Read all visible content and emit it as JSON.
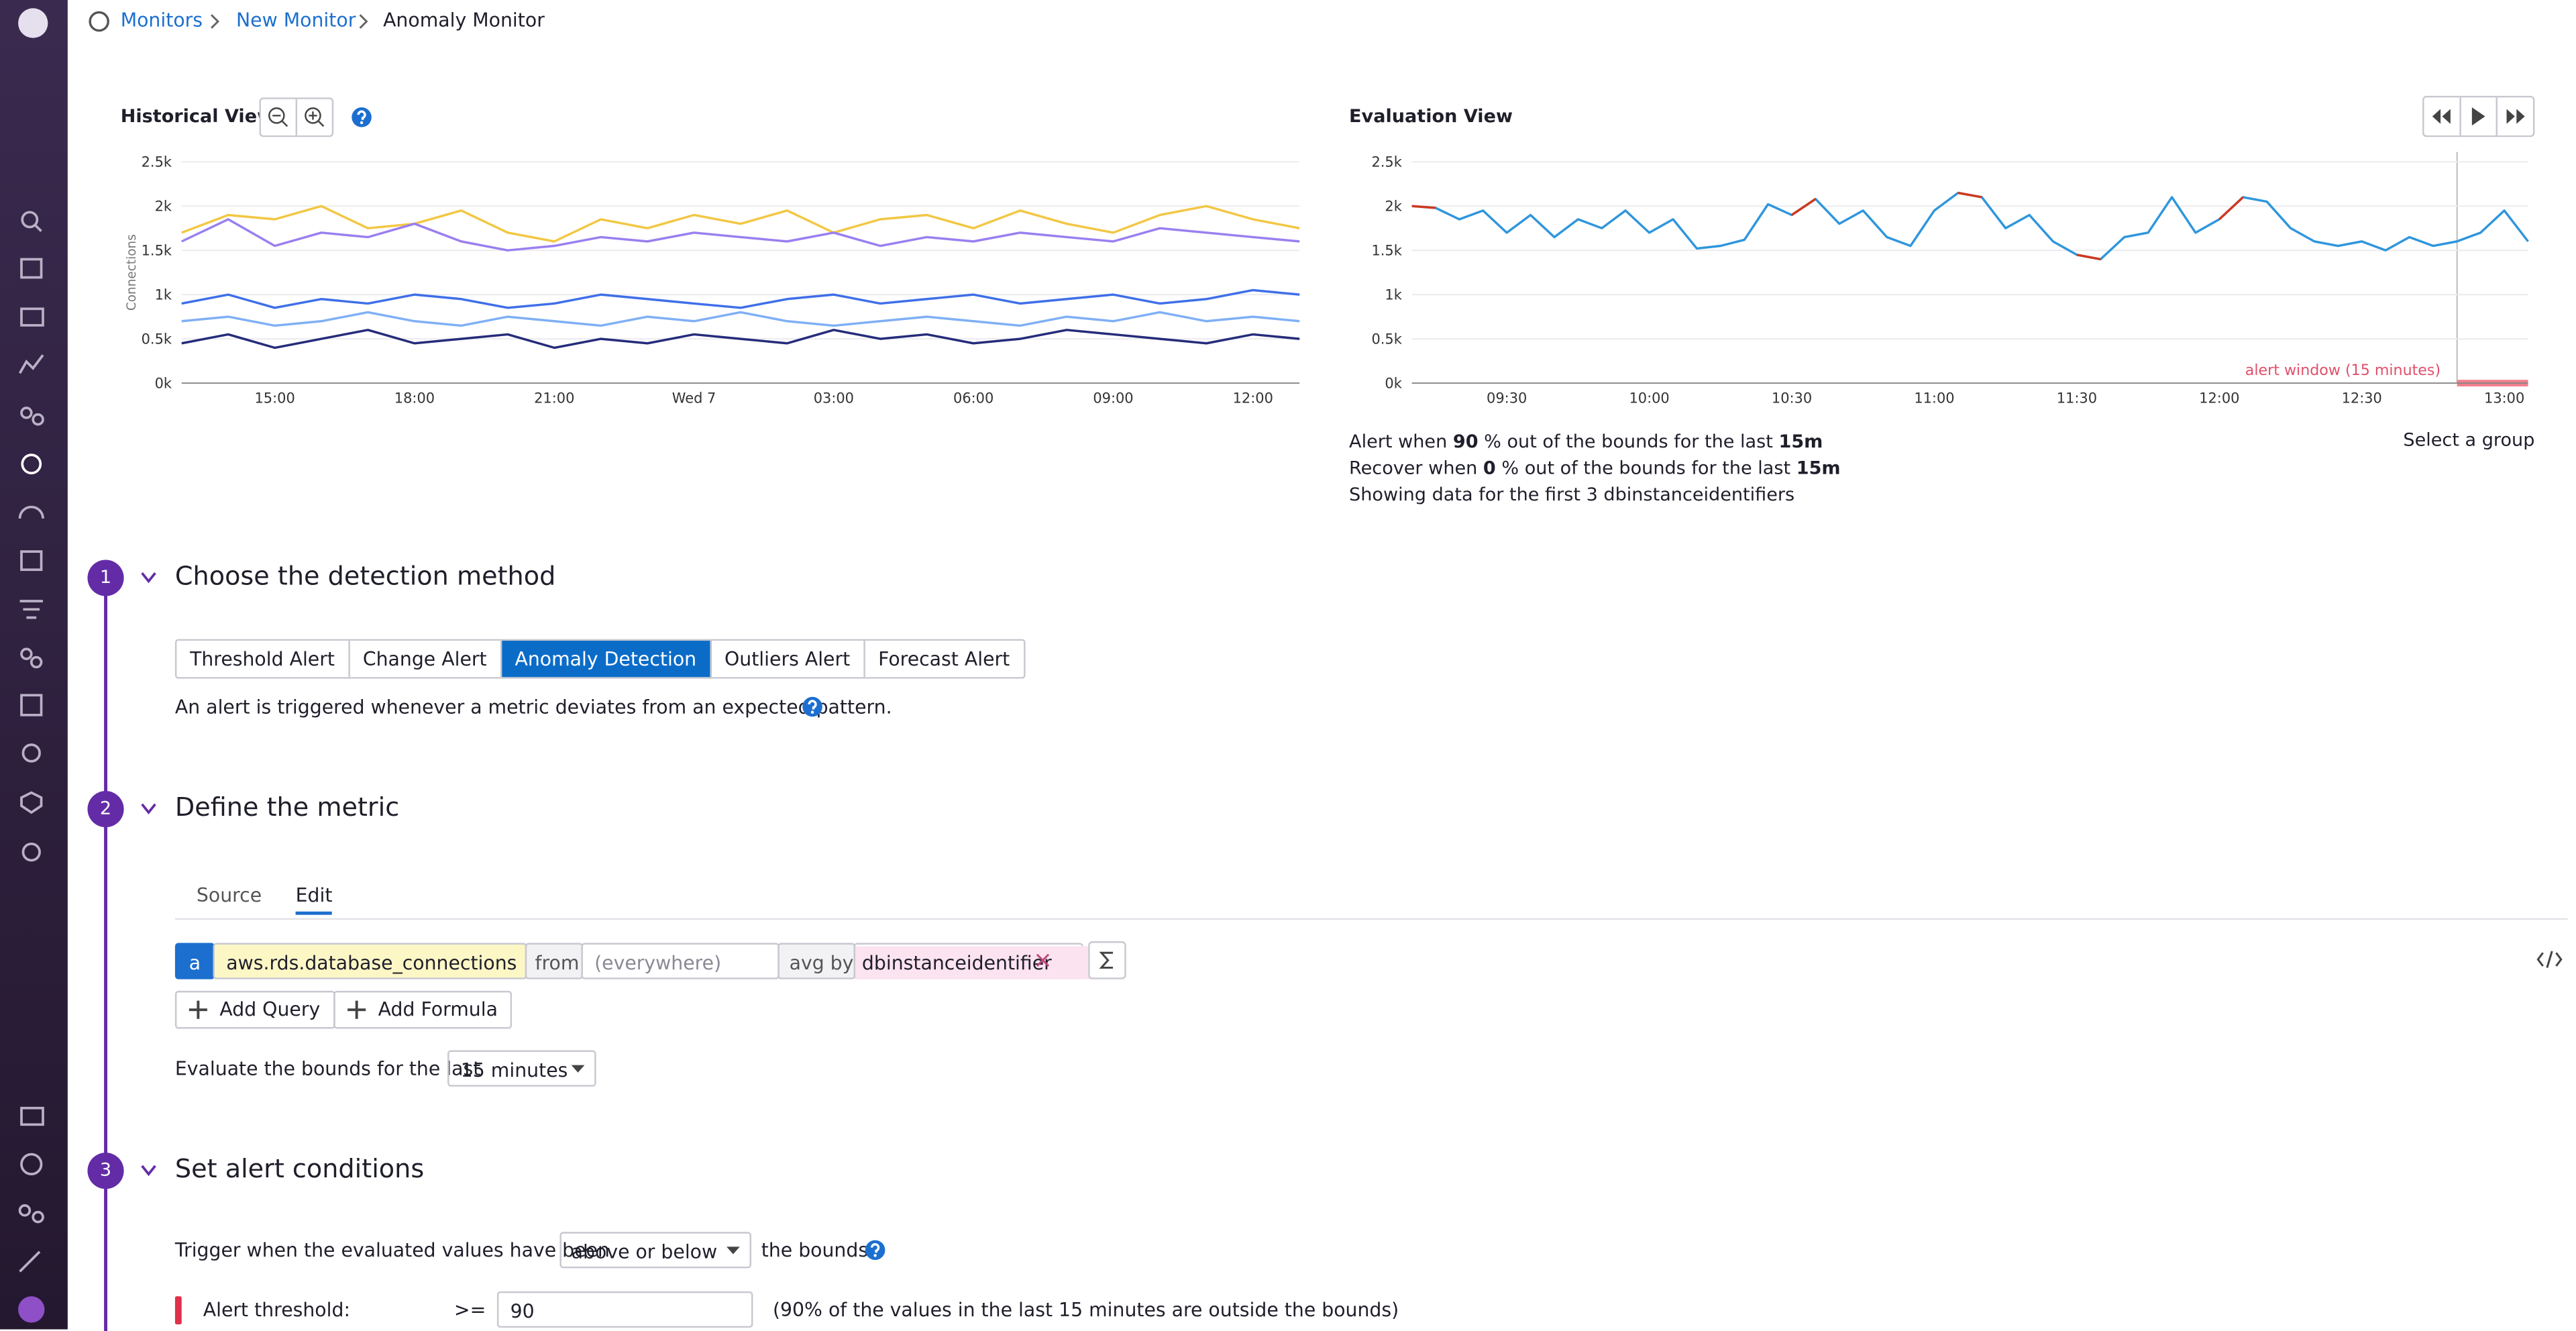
{
  "breadcrumb": [
    "Monitors",
    "New Monitor",
    "Anomaly Monitor"
  ],
  "chart_data": [
    {
      "type": "line",
      "title": "Historical View",
      "y_label": "Connections",
      "categories": [
        null,
        null,
        "15:00",
        null,
        null,
        "18:00",
        null,
        null,
        "21:00",
        null,
        null,
        "Wed 7",
        null,
        null,
        "03:00",
        null,
        null,
        "06:00",
        null,
        null,
        "09:00",
        null,
        null,
        "12:00",
        null
      ],
      "series": [
        {
          "color": "#f2c744",
          "values": [
            1700,
            1900,
            1850,
            2000,
            1750,
            1800,
            1950,
            1700,
            1600,
            1850,
            1750,
            1900,
            1800,
            1950,
            1700,
            1850,
            1900,
            1750,
            1950,
            1800,
            1700,
            1900,
            2000,
            1850,
            1750
          ]
        },
        {
          "color": "#9a7ff0",
          "values": [
            1600,
            1850,
            1550,
            1700,
            1650,
            1800,
            1600,
            1500,
            1550,
            1650,
            1600,
            1700,
            1650,
            1600,
            1700,
            1550,
            1650,
            1600,
            1700,
            1650,
            1600,
            1750,
            1700,
            1650,
            1600
          ]
        },
        {
          "color": "#3f6fe8",
          "values": [
            900,
            1000,
            850,
            950,
            900,
            1000,
            950,
            850,
            900,
            1000,
            950,
            900,
            850,
            950,
            1000,
            900,
            950,
            1000,
            900,
            950,
            1000,
            900,
            950,
            1050,
            1000
          ]
        },
        {
          "color": "#7fb0f5",
          "values": [
            700,
            750,
            650,
            700,
            800,
            700,
            650,
            750,
            700,
            650,
            750,
            700,
            800,
            700,
            650,
            700,
            750,
            700,
            650,
            750,
            700,
            800,
            700,
            750,
            700
          ]
        },
        {
          "color": "#252c7a",
          "values": [
            450,
            550,
            400,
            500,
            600,
            450,
            500,
            550,
            400,
            500,
            450,
            550,
            500,
            450,
            600,
            500,
            550,
            450,
            500,
            600,
            550,
            500,
            450,
            550,
            500
          ]
        }
      ],
      "ylim": [
        0,
        2500
      ],
      "yticks": [
        {
          "value": 0,
          "label": "0k"
        },
        {
          "value": 500,
          "label": "0.5k"
        },
        {
          "value": 1000,
          "label": "1k"
        },
        {
          "value": 1500,
          "label": "1.5k"
        },
        {
          "value": 2000,
          "label": "2k"
        },
        {
          "value": 2500,
          "label": "2.5k"
        }
      ],
      "grid": true
    },
    {
      "type": "line",
      "title": "Evaluation View",
      "annotation": "alert window (15 minutes)",
      "categories": [
        null,
        null,
        null,
        null,
        "09:30",
        null,
        null,
        null,
        null,
        null,
        "10:00",
        null,
        null,
        null,
        null,
        null,
        "10:30",
        null,
        null,
        null,
        null,
        null,
        "11:00",
        null,
        null,
        null,
        null,
        null,
        "11:30",
        null,
        null,
        null,
        null,
        null,
        "12:00",
        null,
        null,
        null,
        null,
        null,
        "12:30",
        null,
        null,
        null,
        null,
        null,
        "13:00",
        null
      ],
      "series": [
        {
          "color": "#2f96dc",
          "values": [
            2000,
            1980,
            1850,
            1950,
            1700,
            1900,
            1650,
            1850,
            1750,
            1950,
            1700,
            1850,
            1520,
            1550,
            1620,
            2020,
            1900,
            2080,
            1800,
            1950,
            1650,
            1550,
            1950,
            2150,
            2100,
            1750,
            1900,
            1600,
            1450,
            1400,
            1650,
            1700,
            2100,
            1700,
            1850,
            2100,
            2050,
            1750,
            1600,
            1550,
            1600,
            1500,
            1650,
            1550,
            1600,
            1700,
            1950,
            1600
          ]
        },
        {
          "color": "#d0391f",
          "values": [
            2000,
            1980,
            null,
            null,
            null,
            null,
            null,
            null,
            null,
            null,
            null,
            null,
            null,
            null,
            null,
            null,
            1900,
            2080,
            null,
            null,
            null,
            null,
            null,
            2150,
            2100,
            null,
            null,
            null,
            1450,
            1400,
            null,
            null,
            null,
            null,
            1850,
            2100,
            null,
            null,
            null,
            null,
            null,
            null,
            null,
            null,
            null,
            null,
            null,
            null
          ]
        }
      ],
      "ylim": [
        0,
        2500
      ],
      "yticks": [
        {
          "value": 0,
          "label": "0k"
        },
        {
          "value": 500,
          "label": "0.5k"
        },
        {
          "value": 1000,
          "label": "1k"
        },
        {
          "value": 1500,
          "label": "1.5k"
        },
        {
          "value": 2000,
          "label": "2k"
        },
        {
          "value": 2500,
          "label": "2.5k"
        }
      ],
      "grid": true
    }
  ],
  "evaluation_notes": [
    [
      "Alert when ",
      "90",
      " % out of the bounds for the last ",
      "15m"
    ],
    [
      "Recover when ",
      "0",
      " % out of the bounds for the last ",
      "15m"
    ],
    [
      "Showing data for the first 3 dbinstanceidentifiers"
    ]
  ],
  "select_group": "Select a group",
  "steps": [
    {
      "number": 1,
      "title": "Choose the detection method"
    },
    {
      "number": 2,
      "title": "Define the metric"
    },
    {
      "number": 3,
      "title": "Set alert conditions"
    }
  ],
  "detection_methods": [
    "Threshold Alert",
    "Change Alert",
    "Anomaly Detection",
    "Outliers Alert",
    "Forecast Alert"
  ],
  "selected_method": 2,
  "detection_description": "An alert is triggered whenever a metric deviates from an expected pattern.",
  "metric_tabs": [
    "Source",
    "Edit"
  ],
  "active_tab": 1,
  "query": {
    "letter": "a",
    "metric": "aws.rds.database_connections",
    "from_label": "from",
    "from_placeholder": "(everywhere)",
    "avg_by_label": "avg by",
    "group": "dbinstanceidentifier"
  },
  "query_buttons": [
    "Add Query",
    "Add Formula"
  ],
  "evaluate": {
    "label": "Evaluate the bounds for the last",
    "value": "15 minutes"
  },
  "trigger": {
    "label": "Trigger when the evaluated values have been",
    "value": "above or below",
    "suffix": "the bounds"
  },
  "alert_threshold": {
    "label": "Alert threshold:",
    "operator": ">=",
    "value": "90",
    "note": "(90% of the values in the last 15 minutes are outside the bounds)"
  }
}
